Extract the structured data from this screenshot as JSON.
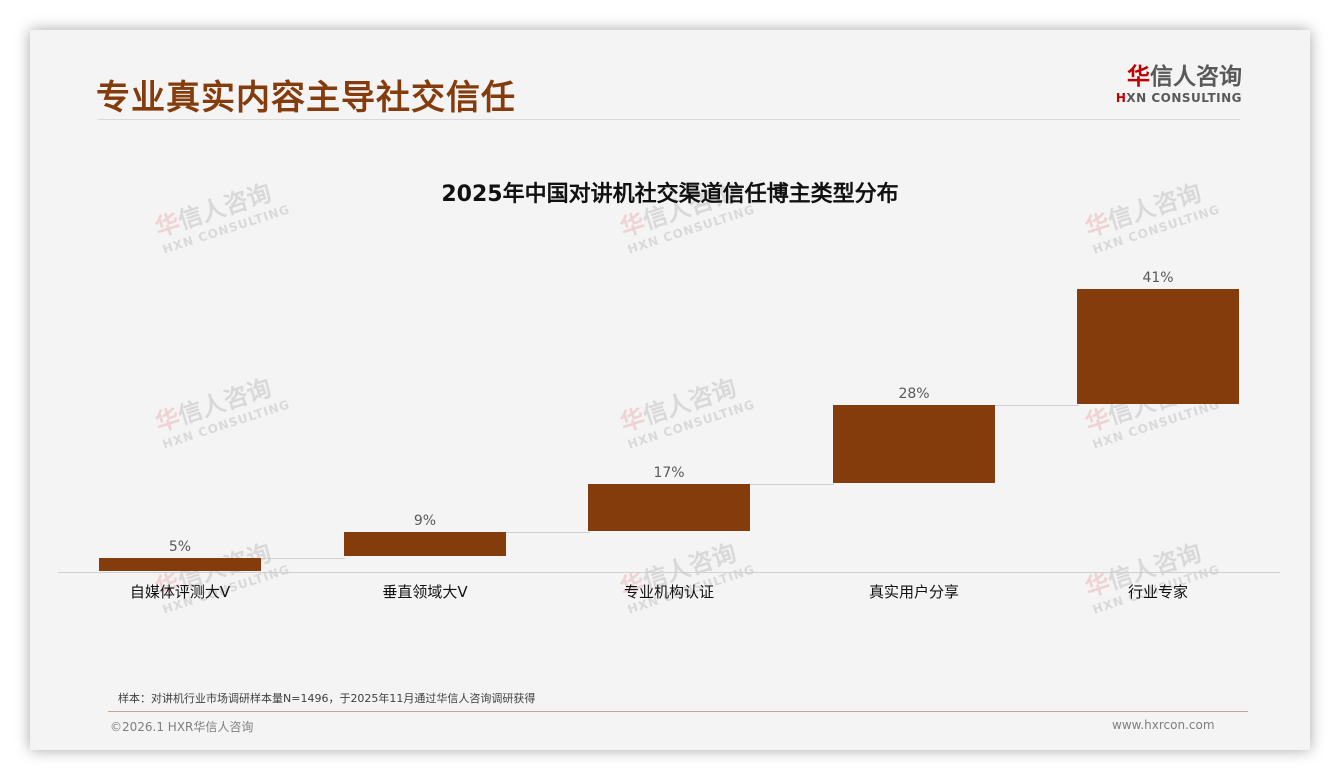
{
  "header": {
    "title": "专业真实内容主导社交信任",
    "logo": {
      "cn_red": "华",
      "cn_rest": "信人咨询",
      "en_red": "H",
      "en_rest": "XN CONSULTING"
    }
  },
  "watermark": {
    "cn_red": "华",
    "cn_rest": "信人咨询",
    "en": "HXN CONSULTING"
  },
  "chart_data": {
    "type": "bar",
    "subtype": "waterfall",
    "title": "2025年中国对讲机社交渠道信任博主类型分布",
    "categories": [
      "自媒体评测大V",
      "垂直领域大V",
      "专业机构认证",
      "真实用户分享",
      "行业专家"
    ],
    "values": [
      5,
      9,
      17,
      28,
      41
    ],
    "value_labels": [
      "5%",
      "9%",
      "17%",
      "28%",
      "41%"
    ],
    "cumulative_base": [
      0,
      5,
      14,
      31,
      59
    ],
    "unit": "%",
    "xlabel": "",
    "ylabel": "",
    "ylim": [
      0,
      100
    ],
    "grid": false,
    "legend": false,
    "bar_color": "#843c0c"
  },
  "footer": {
    "note": "样本：对讲机行业市场调研样本量N=1496，于2025年11月通过华信人咨询调研获得",
    "copyright": "©2026.1 HXR华信人咨询",
    "website": "www.hxrcon.com"
  },
  "colors": {
    "accent": "#843c0c",
    "logo_red": "#c00000",
    "background": "#f4f4f4"
  }
}
